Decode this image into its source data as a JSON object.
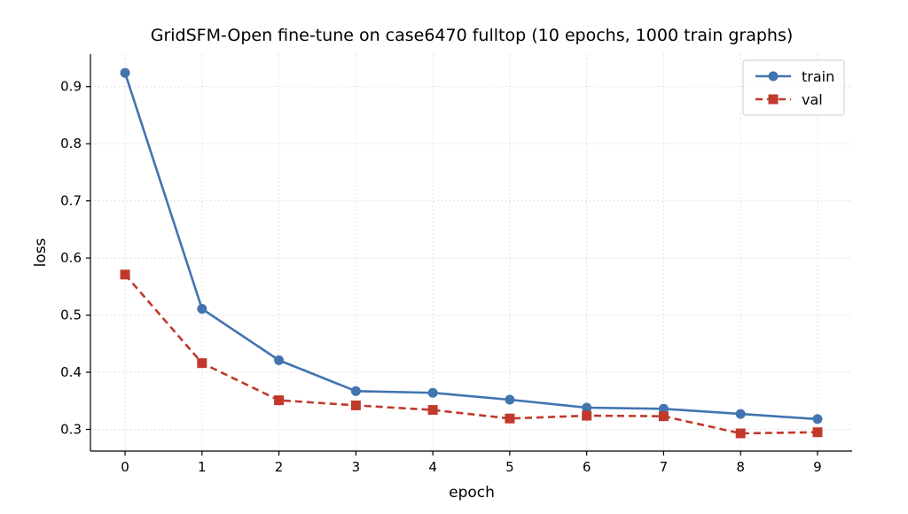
{
  "chart_data": {
    "type": "line",
    "title": "GridSFM-Open fine-tune on case6470 fulltop (10 epochs, 1000 train graphs)",
    "xlabel": "epoch",
    "ylabel": "loss",
    "x": [
      0,
      1,
      2,
      3,
      4,
      5,
      6,
      7,
      8,
      9
    ],
    "xticks": [
      "0",
      "1",
      "2",
      "3",
      "4",
      "5",
      "6",
      "7",
      "8",
      "9"
    ],
    "yticks": [
      "0.3",
      "0.4",
      "0.5",
      "0.6",
      "0.7",
      "0.8",
      "0.9"
    ],
    "xlim": [
      -0.45,
      9.45
    ],
    "ylim": [
      0.262,
      0.957
    ],
    "grid": true,
    "legend_position": "top-right",
    "series": [
      {
        "name": "train",
        "color": "#4274b0",
        "marker": "circle",
        "line_style": "solid",
        "values": [
          0.924,
          0.511,
          0.421,
          0.367,
          0.364,
          0.352,
          0.338,
          0.336,
          0.327,
          0.318
        ]
      },
      {
        "name": "val",
        "color": "#c0392b",
        "marker": "square",
        "line_style": "dashed",
        "values": [
          0.571,
          0.416,
          0.351,
          0.342,
          0.334,
          0.319,
          0.324,
          0.323,
          0.293,
          0.295
        ]
      }
    ]
  }
}
